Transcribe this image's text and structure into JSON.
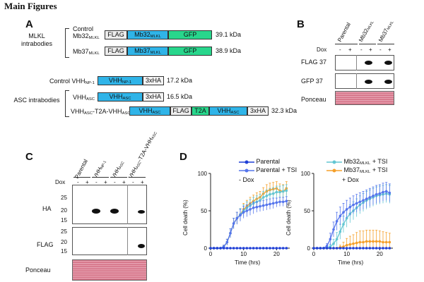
{
  "header": "Main Figures",
  "panel_labels": {
    "a": "A",
    "b": "B",
    "c": "C",
    "d": "D"
  },
  "panel_a": {
    "mlkl_group": "MLKL intrabodies",
    "asc_group": "ASC intrabodies",
    "rows": [
      {
        "name": "Control",
        "name2_main": "Mb32",
        "name2_sub": "MLKL",
        "segments": [
          "FLAG",
          "Mb32",
          "GFP"
        ],
        "seg_sub": "MLKL",
        "size": "39.1 kDa"
      },
      {
        "name_main": "Mb37",
        "name_sub": "MLKL",
        "segments": [
          "FLAG",
          "Mb37",
          "GFP"
        ],
        "seg_sub": "MLKL",
        "size": "38.9 kDa"
      },
      {
        "name_main": "Control VHH",
        "name_sub": "NP-1",
        "segments": [
          "VHH",
          "3xHA"
        ],
        "seg_sub": "NP-1",
        "size": "17.2 kDa"
      },
      {
        "name_main": "VHH",
        "name_sub": "ASC",
        "segments": [
          "VHH",
          "3xHA"
        ],
        "seg_sub": "ASC",
        "size": "16.5 kDa"
      },
      {
        "name_main": "VHH",
        "name_sub": "ASC",
        "name_mid": "-T2A-VHH",
        "name_sub2": "ASC",
        "segments": [
          "VHH",
          "FLAG",
          "T2A",
          "VHH",
          "3xHA"
        ],
        "seg_sub": "ASC",
        "size": "32.3 kDa"
      }
    ]
  },
  "panel_b": {
    "lanes": [
      {
        "main": "Parental",
        "sub": ""
      },
      {
        "main": "Mb32",
        "sub": "MLKL"
      },
      {
        "main": "Mb37",
        "sub": "MLKL"
      }
    ],
    "dox_label": "Dox",
    "dox_signs": [
      "-",
      "+",
      "-",
      "+",
      "-",
      "+"
    ],
    "rows": [
      "FLAG 37",
      "GFP 37",
      "Ponceau"
    ]
  },
  "panel_c": {
    "lanes": [
      {
        "main": "Parental",
        "sub": ""
      },
      {
        "main": "VHH",
        "sub": "NP-1"
      },
      {
        "main": "VHH",
        "sub": "ASC"
      },
      {
        "main": "VHH",
        "sub": "ASC",
        "mid": "-T2A-VHH",
        "sub2": "ASC"
      }
    ],
    "dox_label": "Dox",
    "dox_signs": [
      "-",
      "+",
      "-",
      "+",
      "-",
      "+",
      "-",
      "+"
    ],
    "ha_label": "HA",
    "flag_label": "FLAG",
    "ponceau": "Ponceau",
    "ha_markers": [
      "25",
      "20",
      "15"
    ],
    "flag_markers": [
      "25",
      "20",
      "15"
    ]
  },
  "panel_d": {
    "legend": [
      {
        "main": "Parental",
        "sub": "",
        "suffix": ""
      },
      {
        "main": "Parental + TSI",
        "sub": "",
        "suffix": ""
      },
      {
        "main": "Mb32",
        "sub": "MLKL",
        "suffix": " + TSI"
      },
      {
        "main": "Mb37",
        "sub": "MLKL",
        "suffix": " + TSI"
      }
    ]
  },
  "chart_data": [
    {
      "type": "line",
      "title": "- Dox",
      "xlabel": "Time (hrs)",
      "ylabel": "Cell death (%)",
      "xlim": [
        0,
        24
      ],
      "ylim": [
        0,
        100
      ],
      "xticks": [
        0,
        10,
        20
      ],
      "yticks": [
        0,
        50,
        100
      ],
      "x": [
        0,
        1,
        2,
        3,
        4,
        5,
        6,
        7,
        8,
        9,
        10,
        11,
        12,
        13,
        14,
        15,
        16,
        17,
        18,
        19,
        20,
        21,
        22,
        23
      ],
      "series": [
        {
          "name": "Parental",
          "color": "#1f3fd6",
          "values": [
            0,
            0,
            0,
            0,
            0,
            0,
            0,
            0,
            0,
            0,
            0,
            0,
            0,
            0,
            0,
            0,
            0,
            0,
            0,
            0,
            0,
            0,
            0,
            0
          ],
          "err": [
            0,
            0,
            0,
            0,
            0,
            0,
            0,
            0,
            0,
            0,
            0,
            0,
            0,
            0,
            0,
            0,
            0,
            0,
            0,
            0,
            0,
            0,
            0,
            0
          ]
        },
        {
          "name": "Parental + TSI",
          "color": "#5575ec",
          "values": [
            0,
            0,
            0,
            0,
            2,
            8,
            20,
            33,
            40,
            44,
            48,
            50,
            52,
            54,
            55,
            56,
            57,
            58,
            59,
            60,
            61,
            62,
            62,
            63
          ],
          "err": [
            0,
            0,
            0,
            0,
            2,
            4,
            6,
            7,
            8,
            8,
            8,
            8,
            8,
            8,
            7,
            7,
            7,
            7,
            7,
            7,
            6,
            6,
            6,
            6
          ]
        },
        {
          "name": "Mb32 MLKL + TSI",
          "color": "#63c6d2",
          "values": [
            0,
            0,
            0,
            0,
            2,
            8,
            20,
            33,
            40,
            45,
            50,
            54,
            57,
            60,
            62,
            64,
            68,
            70,
            72,
            73,
            75,
            75,
            76,
            77
          ],
          "err": [
            0,
            0,
            0,
            0,
            2,
            4,
            6,
            7,
            8,
            8,
            8,
            8,
            8,
            8,
            8,
            8,
            8,
            8,
            8,
            8,
            8,
            8,
            8,
            8
          ]
        },
        {
          "name": "Mb37 MLKL + TSI",
          "color": "#f5a02a",
          "values": [
            0,
            0,
            0,
            0,
            2,
            8,
            20,
            33,
            40,
            45,
            52,
            56,
            60,
            63,
            66,
            68,
            73,
            76,
            78,
            79,
            80,
            77,
            76,
            80
          ],
          "err": [
            0,
            0,
            0,
            0,
            2,
            4,
            6,
            7,
            8,
            8,
            8,
            8,
            8,
            8,
            8,
            8,
            8,
            9,
            9,
            9,
            9,
            9,
            9,
            9
          ]
        }
      ]
    },
    {
      "type": "line",
      "title": "+ Dox",
      "xlabel": "Time (hrs)",
      "ylabel": "Cell death (%)",
      "xlim": [
        0,
        24
      ],
      "ylim": [
        0,
        100
      ],
      "xticks": [
        0,
        10,
        20
      ],
      "yticks": [
        0,
        50,
        100
      ],
      "x": [
        0,
        1,
        2,
        3,
        4,
        5,
        6,
        7,
        8,
        9,
        10,
        11,
        12,
        13,
        14,
        15,
        16,
        17,
        18,
        19,
        20,
        21,
        22,
        23
      ],
      "series": [
        {
          "name": "Parental",
          "color": "#1f3fd6",
          "values": [
            0,
            0,
            0,
            0,
            0,
            0,
            0,
            0,
            0,
            0,
            0,
            0,
            0,
            0,
            0,
            0,
            0,
            0,
            0,
            0,
            0,
            0,
            0,
            0
          ],
          "err": [
            0,
            0,
            0,
            0,
            0,
            0,
            0,
            0,
            0,
            0,
            0,
            0,
            0,
            0,
            0,
            0,
            0,
            0,
            0,
            0,
            0,
            0,
            0,
            0
          ]
        },
        {
          "name": "Parental + TSI",
          "color": "#5575ec",
          "values": [
            0,
            0,
            0,
            0,
            3,
            12,
            25,
            36,
            43,
            48,
            52,
            55,
            58,
            60,
            62,
            64,
            66,
            68,
            70,
            72,
            73,
            75,
            76,
            74
          ],
          "err": [
            0,
            0,
            0,
            0,
            3,
            8,
            10,
            12,
            12,
            12,
            12,
            12,
            12,
            12,
            12,
            12,
            12,
            12,
            12,
            12,
            12,
            12,
            12,
            12
          ]
        },
        {
          "name": "Mb32 MLKL + TSI",
          "color": "#63c6d2",
          "values": [
            0,
            0,
            0,
            0,
            0,
            2,
            6,
            12,
            22,
            32,
            40,
            46,
            50,
            54,
            58,
            61,
            64,
            66,
            68,
            70,
            71,
            72,
            73,
            72
          ],
          "err": [
            0,
            0,
            0,
            0,
            0,
            3,
            6,
            9,
            10,
            11,
            12,
            12,
            12,
            12,
            12,
            12,
            12,
            12,
            12,
            12,
            12,
            12,
            12,
            12
          ]
        },
        {
          "name": "Mb37 MLKL + TSI",
          "color": "#f5a02a",
          "values": [
            0,
            0,
            0,
            0,
            0,
            0,
            0,
            0,
            1,
            2,
            4,
            5,
            6,
            7,
            8,
            8,
            9,
            9,
            9,
            9,
            9,
            8,
            8,
            8
          ],
          "err": [
            0,
            0,
            0,
            0,
            0,
            0,
            0,
            0,
            3,
            6,
            9,
            11,
            12,
            14,
            15,
            15,
            15,
            15,
            15,
            15,
            14,
            14,
            13,
            12
          ]
        }
      ]
    }
  ]
}
